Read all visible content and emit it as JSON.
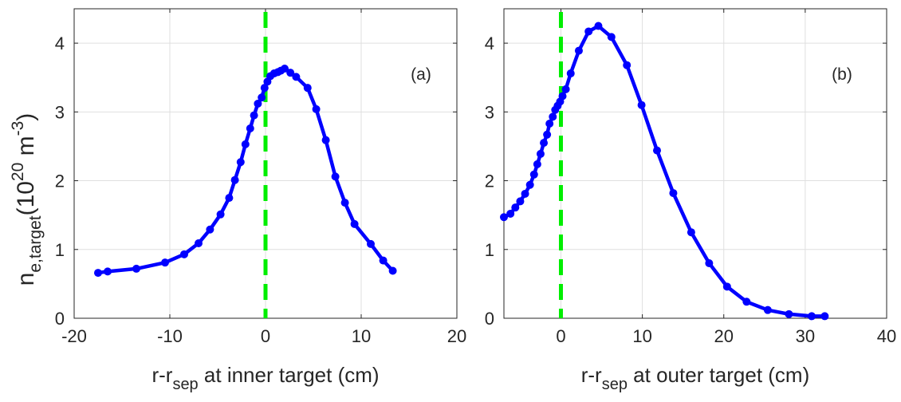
{
  "figure": {
    "ylabel": {
      "base": "n",
      "sub": "e,target",
      "open": "(10",
      "sup1": "20",
      "mid": " m",
      "sup2": "-3",
      "close": ")"
    }
  },
  "chart_data": [
    {
      "type": "line",
      "panel": "(a)",
      "xlabel": {
        "pre": "r-r",
        "sub": "sep",
        "post": " at inner target (cm)"
      },
      "xlim": [
        -20,
        20
      ],
      "ylim": [
        0,
        4.5
      ],
      "xticks": [
        -20,
        -10,
        0,
        10,
        20
      ],
      "yticks": [
        0,
        1,
        2,
        3,
        4
      ],
      "grid": true,
      "separatrix_x": 0,
      "line_color": "#0000ff",
      "separatrix_color": "#00ee00",
      "series": [
        {
          "name": "inner target",
          "x": [
            -17.5,
            -16.5,
            -13.5,
            -10.5,
            -8.5,
            -7,
            -5.8,
            -4.7,
            -3.8,
            -3.2,
            -2.6,
            -2.1,
            -1.6,
            -1.2,
            -0.8,
            -0.4,
            -0.1,
            0.2,
            0.5,
            0.9,
            1.3,
            1.6,
            2,
            2.6,
            3.2,
            4.4,
            5.3,
            6.3,
            7.3,
            8.3,
            9.3,
            11,
            12.3,
            13.3
          ],
          "y": [
            0.66,
            0.68,
            0.72,
            0.81,
            0.93,
            1.09,
            1.29,
            1.51,
            1.75,
            2.01,
            2.27,
            2.53,
            2.76,
            2.95,
            3.12,
            3.21,
            3.35,
            3.44,
            3.52,
            3.56,
            3.58,
            3.6,
            3.63,
            3.57,
            3.51,
            3.35,
            3.04,
            2.59,
            2.06,
            1.68,
            1.37,
            1.08,
            0.84,
            0.69
          ]
        }
      ]
    },
    {
      "type": "line",
      "panel": "(b)",
      "xlabel": {
        "pre": "r-r",
        "sub": "sep",
        "post": " at outer target (cm)"
      },
      "xlim": [
        -7,
        40
      ],
      "ylim": [
        0,
        4.5
      ],
      "xticks": [
        0,
        10,
        20,
        30,
        40
      ],
      "yticks": [
        0,
        1,
        2,
        3,
        4
      ],
      "grid": true,
      "separatrix_x": 0,
      "line_color": "#0000ff",
      "separatrix_color": "#00ee00",
      "series": [
        {
          "name": "outer target",
          "x": [
            -7,
            -6.2,
            -5.6,
            -5,
            -4.4,
            -3.8,
            -3.3,
            -2.9,
            -2.5,
            -2.1,
            -1.7,
            -1.4,
            -1,
            -0.7,
            -0.4,
            -0.1,
            0.2,
            0.6,
            1.2,
            2.2,
            3.4,
            4.6,
            6.2,
            8.1,
            9.9,
            11.8,
            13.8,
            16,
            18.2,
            20.4,
            22.8,
            25.4,
            28,
            30.8,
            32.4
          ],
          "y": [
            1.47,
            1.52,
            1.61,
            1.7,
            1.81,
            1.94,
            2.09,
            2.24,
            2.39,
            2.55,
            2.67,
            2.83,
            2.93,
            3.03,
            3.09,
            3.15,
            3.23,
            3.33,
            3.56,
            3.89,
            4.17,
            4.25,
            4.09,
            3.68,
            3.1,
            2.44,
            1.82,
            1.25,
            0.8,
            0.46,
            0.24,
            0.12,
            0.06,
            0.03,
            0.03
          ]
        }
      ]
    }
  ]
}
